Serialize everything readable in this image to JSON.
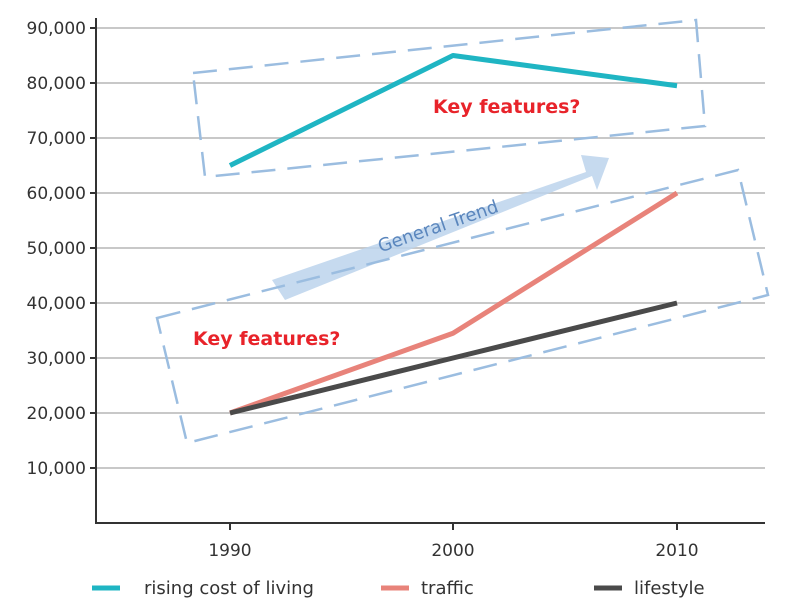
{
  "chart_data": {
    "type": "line",
    "x": [
      "1990",
      "2000",
      "2010"
    ],
    "series": [
      {
        "name": "rising cost of living",
        "values": [
          65000,
          85000,
          79500
        ],
        "color": "#1fb5c3"
      },
      {
        "name": "traffic",
        "values": [
          20000,
          34500,
          60000
        ],
        "color": "#e8837a"
      },
      {
        "name": "lifestyle",
        "values": [
          20000,
          30000,
          40000
        ],
        "color": "#4a4a4a"
      }
    ],
    "yticks": [
      10000,
      20000,
      30000,
      40000,
      50000,
      60000,
      70000,
      80000,
      90000
    ],
    "ytick_labels": [
      "10,000",
      "20,000",
      "30,000",
      "40,000",
      "50,000",
      "60,000",
      "70,000",
      "80,000",
      "90,000"
    ],
    "ylim": [
      0,
      90000
    ],
    "grid": true,
    "legend": "bottom",
    "annotations": {
      "key_feature_top": "Key features?",
      "key_feature_bottom": "Key features?",
      "trend_label": "General Trend"
    },
    "annotation_colors": {
      "box": "#9bbde0",
      "arrow": "#bcd4ec",
      "callout": "#e8232a"
    }
  }
}
